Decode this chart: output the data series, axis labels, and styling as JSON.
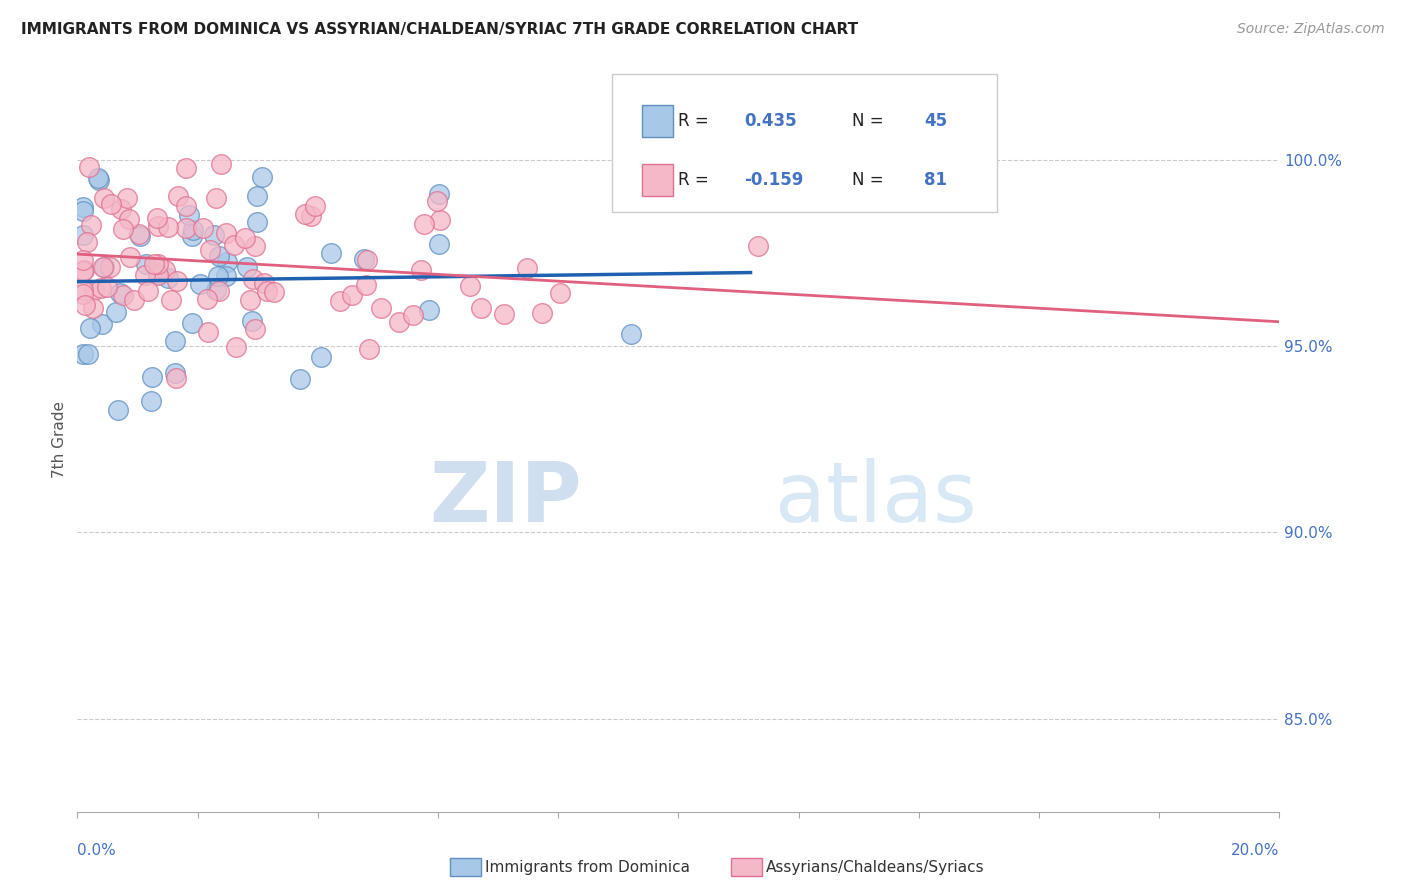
{
  "title": "IMMIGRANTS FROM DOMINICA VS ASSYRIAN/CHALDEAN/SYRIAC 7TH GRADE CORRELATION CHART",
  "source": "Source: ZipAtlas.com",
  "ylabel": "7th Grade",
  "y_tick_labels": [
    "100.0%",
    "95.0%",
    "90.0%",
    "85.0%"
  ],
  "y_tick_values": [
    1.0,
    0.95,
    0.9,
    0.85
  ],
  "x_min": 0.0,
  "x_max": 0.2,
  "y_min": 0.825,
  "y_max": 1.025,
  "R_blue": 0.435,
  "N_blue": 45,
  "R_pink": -0.159,
  "N_pink": 81,
  "legend_label_blue": "Immigrants from Dominica",
  "legend_label_pink": "Assyrians/Chaldeans/Syriacs",
  "blue_color": "#a8c8e8",
  "pink_color": "#f4b8c8",
  "blue_edge_color": "#6090c0",
  "pink_edge_color": "#e07090",
  "blue_line_color": "#2060b0",
  "pink_line_color": "#e06080",
  "watermark_zip_color": "#d0dff0",
  "watermark_atlas_color": "#d8e8f4",
  "grid_color": "#cccccc",
  "right_label_color": "#4472c4",
  "title_color": "#222222",
  "source_color": "#999999",
  "ylabel_color": "#555555"
}
